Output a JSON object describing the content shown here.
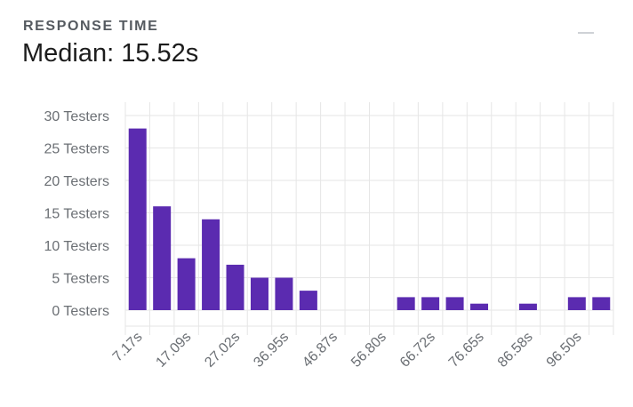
{
  "header": {
    "label": "RESPONSE TIME",
    "value": "Median: 15.52s"
  },
  "colors": {
    "bar": "#5b2bb0",
    "grid": "#e6e6e6",
    "axis_text": "#6b6f74",
    "label": "#555a60"
  },
  "chart_data": {
    "type": "bar",
    "title": "",
    "xlabel": "",
    "ylabel": "",
    "ylim": [
      0,
      30
    ],
    "y_ticks": [
      0,
      5,
      10,
      15,
      20,
      25,
      30
    ],
    "y_tick_labels": [
      "0 Testers",
      "5 Testers",
      "10 Testers",
      "15 Testers",
      "20 Testers",
      "25 Testers",
      "30 Testers"
    ],
    "x_tick_labels": [
      "7.17s",
      "17.09s",
      "27.02s",
      "36.95s",
      "46.87s",
      "56.80s",
      "66.72s",
      "76.65s",
      "86.58s",
      "96.50s"
    ],
    "values": [
      28,
      16,
      8,
      14,
      7,
      5,
      5,
      3,
      0,
      0,
      0,
      2,
      2,
      2,
      1,
      0,
      1,
      0,
      2,
      2
    ],
    "grid": true,
    "legend": "none"
  }
}
